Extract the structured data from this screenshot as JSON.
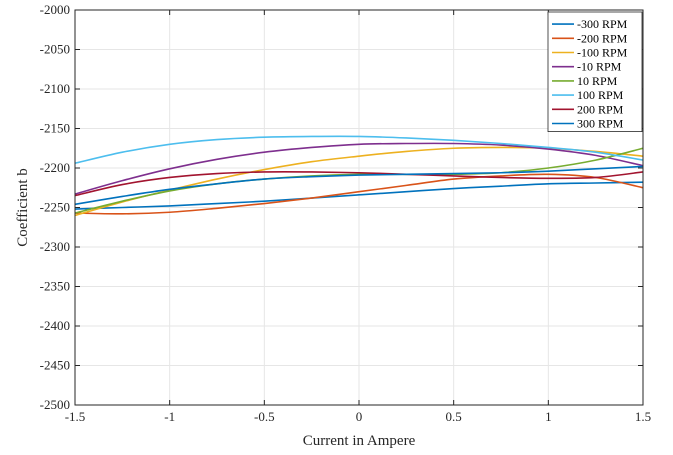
{
  "chart_data": {
    "type": "line",
    "title": "",
    "xlabel": "Current in Ampere",
    "ylabel": "Coefficient b",
    "xlim": [
      -1.5,
      1.5
    ],
    "ylim": [
      -2500,
      -2000
    ],
    "grid": true,
    "legend_position": "top-right",
    "x_ticks": [
      -1.5,
      -1,
      -0.5,
      0,
      0.5,
      1,
      1.5
    ],
    "x_tick_labels": [
      "-1.5",
      "-1",
      "-0.5",
      "0",
      "0.5",
      "1",
      "1.5"
    ],
    "y_ticks": [
      -2000,
      -2050,
      -2100,
      -2150,
      -2200,
      -2250,
      -2300,
      -2350,
      -2400,
      -2450,
      -2500
    ],
    "y_tick_labels": [
      "-2000",
      "-2050",
      "-2100",
      "-2150",
      "-2200",
      "-2250",
      "-2300",
      "-2350",
      "-2400",
      "-2450",
      "-2500"
    ],
    "x": [
      -1.5,
      -1.25,
      -1.0,
      -0.75,
      -0.5,
      -0.25,
      0.0,
      0.25,
      0.5,
      0.75,
      1.0,
      1.25,
      1.5
    ],
    "series": [
      {
        "name": "-300 RPM",
        "color": "#0072BD",
        "values": [
          -2252,
          -2250,
          -2248,
          -2245,
          -2242,
          -2238,
          -2234,
          -2230,
          -2226,
          -2223,
          -2220,
          -2219,
          -2218
        ]
      },
      {
        "name": "-200 RPM",
        "color": "#D95319",
        "values": [
          -2257,
          -2258,
          -2256,
          -2251,
          -2245,
          -2238,
          -2230,
          -2222,
          -2214,
          -2210,
          -2208,
          -2212,
          -2225
        ]
      },
      {
        "name": "-100 RPM",
        "color": "#EDB120",
        "values": [
          -2260,
          -2243,
          -2228,
          -2214,
          -2202,
          -2192,
          -2185,
          -2179,
          -2175,
          -2174,
          -2175,
          -2179,
          -2185
        ]
      },
      {
        "name": "-10 RPM",
        "color": "#7E2F8E",
        "values": [
          -2233,
          -2216,
          -2201,
          -2189,
          -2180,
          -2174,
          -2170,
          -2169,
          -2169,
          -2171,
          -2176,
          -2184,
          -2197
        ]
      },
      {
        "name": "10 RPM",
        "color": "#77AC30",
        "values": [
          -2257,
          -2242,
          -2229,
          -2220,
          -2214,
          -2210,
          -2208,
          -2208,
          -2208,
          -2206,
          -2200,
          -2190,
          -2175
        ]
      },
      {
        "name": "100 RPM",
        "color": "#4DBEEE",
        "values": [
          -2194,
          -2180,
          -2170,
          -2164,
          -2161,
          -2160,
          -2160,
          -2162,
          -2165,
          -2169,
          -2174,
          -2180,
          -2190
        ]
      },
      {
        "name": "200 RPM",
        "color": "#A2142F",
        "values": [
          -2235,
          -2221,
          -2212,
          -2207,
          -2205,
          -2205,
          -2206,
          -2208,
          -2210,
          -2212,
          -2213,
          -2212,
          -2205
        ]
      },
      {
        "name": "300 RPM",
        "color": "#0072BD",
        "values": [
          -2246,
          -2236,
          -2227,
          -2220,
          -2214,
          -2211,
          -2209,
          -2208,
          -2207,
          -2206,
          -2204,
          -2201,
          -2198
        ]
      }
    ]
  }
}
